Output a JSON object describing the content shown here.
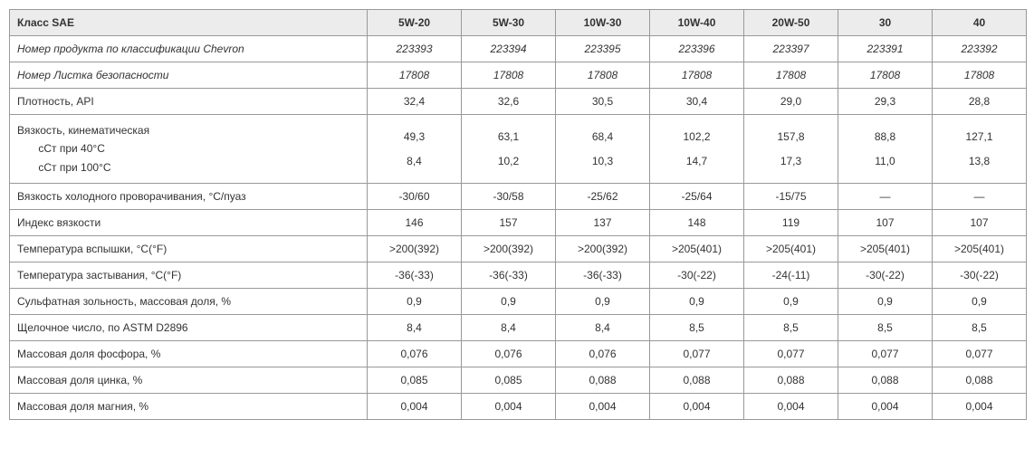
{
  "table": {
    "header_label": "Класс SAE",
    "columns": [
      "5W-20",
      "5W-30",
      "10W-30",
      "10W-40",
      "20W-50",
      "30",
      "40"
    ],
    "rows": [
      {
        "label": "Номер продукта по классификации Chevron",
        "values": [
          "223393",
          "223394",
          "223395",
          "223396",
          "223397",
          "223391",
          "223392"
        ],
        "italic": true
      },
      {
        "label": "Номер Листка безопасности",
        "values": [
          "17808",
          "17808",
          "17808",
          "17808",
          "17808",
          "17808",
          "17808"
        ],
        "italic": true
      },
      {
        "label": "Плотность, API",
        "values": [
          "32,4",
          "32,6",
          "30,5",
          "30,4",
          "29,0",
          "29,3",
          "28,8"
        ]
      },
      {
        "label": "Вязкость, кинематическая\n       сСт при 40°С\n       сСт при 100°С",
        "values": [
          "49,3\n8,4",
          "63,1\n10,2",
          "68,4\n10,3",
          "102,2\n14,7",
          "157,8\n17,3",
          "88,8\n11,0",
          "127,1\n13,8"
        ],
        "multiline": true
      },
      {
        "label": "Вязкость холодного проворачивания, °С/пуаз",
        "values": [
          "-30/60",
          "-30/58",
          "-25/62",
          "-25/64",
          "-15/75",
          "—",
          "—"
        ]
      },
      {
        "label": "Индекс вязкости",
        "values": [
          "146",
          "157",
          "137",
          "148",
          "119",
          "107",
          "107"
        ]
      },
      {
        "label": "Температура вспышки, °С(°F)",
        "values": [
          ">200(392)",
          ">200(392)",
          ">200(392)",
          ">205(401)",
          ">205(401)",
          ">205(401)",
          ">205(401)"
        ]
      },
      {
        "label": "Температура застывания, °С(°F)",
        "values": [
          "-36(-33)",
          "-36(-33)",
          "-36(-33)",
          "-30(-22)",
          "-24(-11)",
          "-30(-22)",
          "-30(-22)"
        ]
      },
      {
        "label": "Сульфатная зольность, массовая доля, %",
        "values": [
          "0,9",
          "0,9",
          "0,9",
          "0,9",
          "0,9",
          "0,9",
          "0,9"
        ]
      },
      {
        "label": "Щелочное число, по ASTM D2896",
        "values": [
          "8,4",
          "8,4",
          "8,4",
          "8,5",
          "8,5",
          "8,5",
          "8,5"
        ]
      },
      {
        "label": "Массовая доля фосфора, %",
        "values": [
          "0,076",
          "0,076",
          "0,076",
          "0,077",
          "0,077",
          "0,077",
          "0,077"
        ]
      },
      {
        "label": "Массовая доля цинка, %",
        "values": [
          "0,085",
          "0,085",
          "0,088",
          "0,088",
          "0,088",
          "0,088",
          "0,088"
        ]
      },
      {
        "label": "Массовая доля магния, %",
        "values": [
          "0,004",
          "0,004",
          "0,004",
          "0,004",
          "0,004",
          "0,004",
          "0,004"
        ]
      }
    ],
    "colors": {
      "header_bg": "#ececec",
      "border": "#999999",
      "text": "#333333",
      "background": "#ffffff"
    },
    "font_size_pt": 9
  }
}
